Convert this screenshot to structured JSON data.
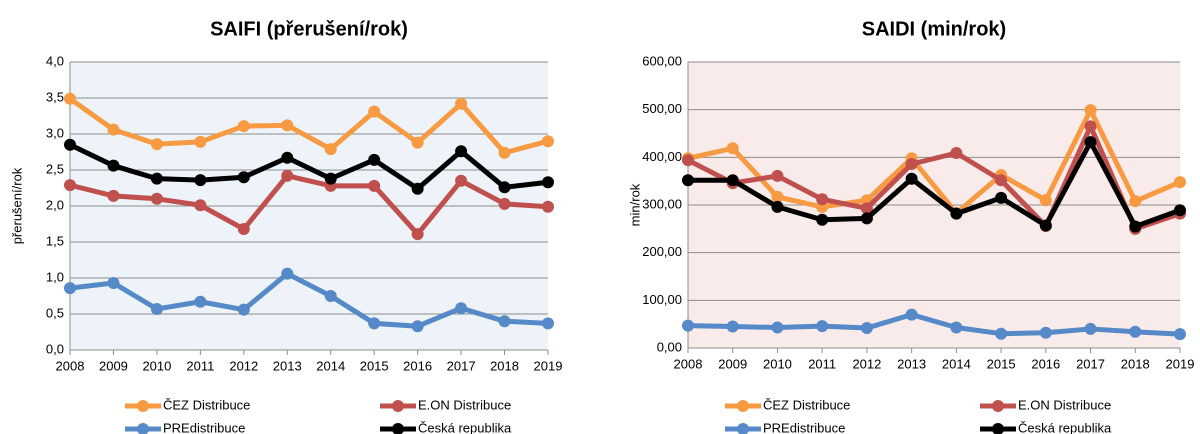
{
  "chart_data": [
    {
      "type": "line",
      "title": "SAIFI (přerušení/rok)",
      "y_label": "přerušení/rok",
      "categories": [
        "2008",
        "2009",
        "2010",
        "2011",
        "2012",
        "2013",
        "2014",
        "2015",
        "2016",
        "2017",
        "2018",
        "2019"
      ],
      "ylim": [
        0,
        4
      ],
      "yticks": [
        {
          "value": 0,
          "label": "0,0"
        },
        {
          "value": 0.5,
          "label": "0,5"
        },
        {
          "value": 1,
          "label": "1,0"
        },
        {
          "value": 1.5,
          "label": "1,5"
        },
        {
          "value": 2,
          "label": "2,0"
        },
        {
          "value": 2.5,
          "label": "2,5"
        },
        {
          "value": 3,
          "label": "3,0"
        },
        {
          "value": 3.5,
          "label": "3,5"
        },
        {
          "value": 4,
          "label": "4,0"
        }
      ],
      "grid": true,
      "background": "#eef3fa",
      "series": [
        {
          "name": "ČEZ Distribuce",
          "color": "#f79a42",
          "values": [
            3.49,
            3.06,
            2.86,
            2.89,
            3.11,
            3.12,
            2.79,
            3.31,
            2.88,
            3.42,
            2.74,
            2.9
          ]
        },
        {
          "name": "E.ON Distribuce",
          "color": "#c0504d",
          "values": [
            2.29,
            2.14,
            2.1,
            2.01,
            1.68,
            2.42,
            2.28,
            2.28,
            1.61,
            2.35,
            2.03,
            1.99
          ]
        },
        {
          "name": "PREdistribuce",
          "color": "#5589c8",
          "values": [
            0.86,
            0.93,
            0.57,
            0.67,
            0.56,
            1.06,
            0.75,
            0.37,
            0.33,
            0.58,
            0.4,
            0.37
          ]
        },
        {
          "name": "Česká republika",
          "color": "#000000",
          "values": [
            2.85,
            2.56,
            2.38,
            2.36,
            2.4,
            2.67,
            2.38,
            2.64,
            2.24,
            2.76,
            2.26,
            2.33
          ]
        }
      ]
    },
    {
      "type": "line",
      "title": "SAIDI (min/rok)",
      "y_label": "min/rok",
      "categories": [
        "2008",
        "2009",
        "2010",
        "2011",
        "2012",
        "2013",
        "2014",
        "2015",
        "2016",
        "2017",
        "2018",
        "2019"
      ],
      "ylim": [
        0,
        600
      ],
      "yticks": [
        {
          "value": 0,
          "label": "0,00"
        },
        {
          "value": 100,
          "label": "100,00"
        },
        {
          "value": 200,
          "label": "200,00"
        },
        {
          "value": 300,
          "label": "300,00"
        },
        {
          "value": 400,
          "label": "400,00"
        },
        {
          "value": 500,
          "label": "500,00"
        },
        {
          "value": 600,
          "label": "600,00"
        }
      ],
      "grid": true,
      "background": "#f9ebe9",
      "series": [
        {
          "name": "ČEZ Distribuce",
          "color": "#f79a42",
          "values": [
            398,
            419,
            317,
            296,
            310,
            398,
            283,
            363,
            310,
            499,
            308,
            348
          ]
        },
        {
          "name": "E.ON Distribuce",
          "color": "#c0504d",
          "values": [
            394,
            346,
            361,
            312,
            293,
            386,
            409,
            352,
            256,
            465,
            250,
            282
          ]
        },
        {
          "name": "PREdistribuce",
          "color": "#5589c8",
          "values": [
            47,
            45,
            43,
            46,
            42,
            70,
            43,
            30,
            32,
            40,
            34,
            29
          ]
        },
        {
          "name": "Česká republika",
          "color": "#000000",
          "values": [
            352,
            352,
            296,
            269,
            272,
            355,
            282,
            315,
            257,
            432,
            255,
            289
          ]
        }
      ]
    }
  ]
}
